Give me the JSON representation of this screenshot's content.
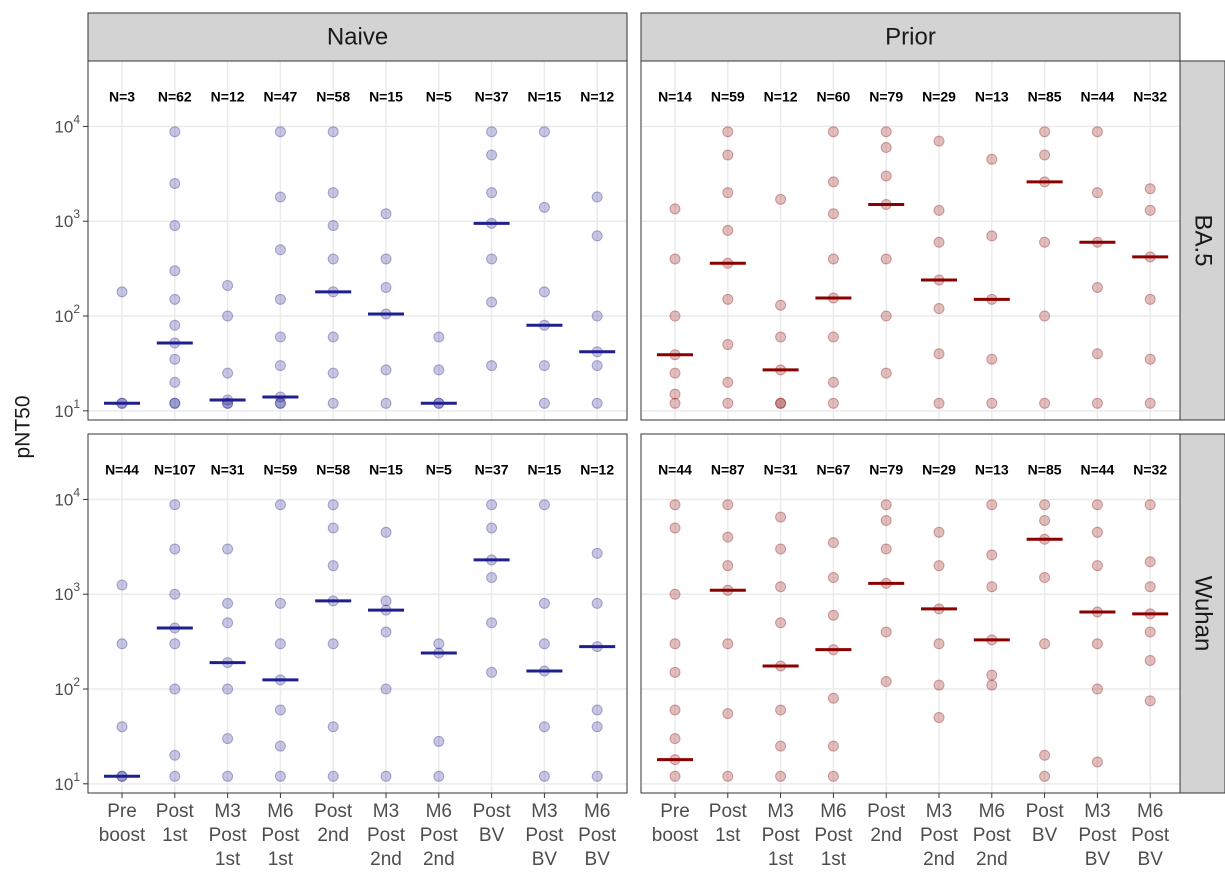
{
  "chart_data": {
    "type": "dot",
    "y_label": "pNT50",
    "log_y": true,
    "grid": true,
    "ylim": [
      8,
      49000
    ],
    "yticks": [
      {
        "value": 10,
        "label": "10",
        "exponent": "1"
      },
      {
        "value": 100,
        "label": "10",
        "exponent": "2"
      },
      {
        "value": 1000,
        "label": "10",
        "exponent": "3"
      },
      {
        "value": 10000,
        "label": "10",
        "exponent": "4"
      }
    ],
    "columns": [
      "Naive",
      "Prior"
    ],
    "rows": [
      "BA.5",
      "Wuhan"
    ],
    "categories": [
      [
        "Pre",
        "boost"
      ],
      [
        "Post",
        "1st"
      ],
      [
        "M3",
        "Post",
        "1st"
      ],
      [
        "M6",
        "Post",
        "1st"
      ],
      [
        "Post",
        "2nd"
      ],
      [
        "M3",
        "Post",
        "2nd"
      ],
      [
        "M6",
        "Post",
        "2nd"
      ],
      [
        "Post",
        "BV"
      ],
      [
        "M3",
        "Post",
        "BV"
      ],
      [
        "M6",
        "Post",
        "BV"
      ]
    ],
    "panels": [
      {
        "col": 0,
        "row": 0,
        "color": "#1f1f8f",
        "n_labels": [
          "N=3",
          "N=62",
          "N=12",
          "N=47",
          "N=58",
          "N=15",
          "N=5",
          "N=37",
          "N=15",
          "N=12"
        ],
        "medians": [
          12,
          52,
          13,
          14,
          180,
          105,
          12,
          950,
          80,
          42
        ],
        "points": [
          [
            12,
            12,
            180
          ],
          [
            12,
            12,
            20,
            35,
            52,
            80,
            150,
            300,
            900,
            2500,
            8800
          ],
          [
            12,
            12,
            13,
            25,
            100,
            210
          ],
          [
            12,
            12,
            14,
            30,
            60,
            150,
            500,
            1800,
            8800
          ],
          [
            12,
            25,
            60,
            180,
            400,
            900,
            2000,
            8800
          ],
          [
            12,
            27,
            105,
            200,
            400,
            1200
          ],
          [
            12,
            12,
            27,
            60
          ],
          [
            30,
            140,
            400,
            950,
            2000,
            5000,
            8800
          ],
          [
            12,
            30,
            80,
            180,
            1400,
            8800
          ],
          [
            12,
            30,
            42,
            100,
            700,
            1800
          ]
        ]
      },
      {
        "col": 1,
        "row": 0,
        "color": "#8b0000",
        "n_labels": [
          "N=14",
          "N=59",
          "N=12",
          "N=60",
          "N=79",
          "N=29",
          "N=13",
          "N=85",
          "N=44",
          "N=32"
        ],
        "medians": [
          39,
          360,
          27,
          155,
          1500,
          240,
          150,
          2600,
          600,
          420
        ],
        "points": [
          [
            12,
            15,
            25,
            39,
            100,
            400,
            1350
          ],
          [
            12,
            20,
            50,
            150,
            360,
            800,
            2000,
            5000,
            8800
          ],
          [
            12,
            12,
            27,
            60,
            130,
            1700
          ],
          [
            12,
            20,
            60,
            155,
            400,
            1200,
            2600,
            8800
          ],
          [
            25,
            100,
            400,
            1500,
            3000,
            6000,
            8800
          ],
          [
            12,
            40,
            120,
            240,
            600,
            1300,
            7000
          ],
          [
            12,
            35,
            150,
            700,
            4500
          ],
          [
            12,
            100,
            600,
            2600,
            5000,
            8800
          ],
          [
            12,
            40,
            200,
            600,
            2000,
            8800
          ],
          [
            12,
            35,
            150,
            420,
            1300,
            2200
          ]
        ]
      },
      {
        "col": 0,
        "row": 1,
        "color": "#1f1f8f",
        "n_labels": [
          "N=44",
          "N=107",
          "N=31",
          "N=59",
          "N=58",
          "N=15",
          "N=5",
          "N=37",
          "N=15",
          "N=12"
        ],
        "medians": [
          12,
          440,
          190,
          125,
          850,
          680,
          240,
          2300,
          155,
          280
        ],
        "points": [
          [
            12,
            12,
            40,
            300,
            1250
          ],
          [
            12,
            20,
            100,
            300,
            440,
            1000,
            3000,
            8800
          ],
          [
            12,
            30,
            100,
            190,
            500,
            800,
            3000
          ],
          [
            12,
            25,
            60,
            125,
            300,
            800,
            8800
          ],
          [
            12,
            40,
            300,
            850,
            2000,
            5000,
            8800
          ],
          [
            12,
            100,
            400,
            680,
            850,
            4500
          ],
          [
            12,
            28,
            240,
            300
          ],
          [
            150,
            500,
            1500,
            2300,
            5000,
            8800
          ],
          [
            12,
            40,
            155,
            300,
            800,
            8800
          ],
          [
            12,
            40,
            60,
            280,
            800,
            2700
          ]
        ]
      },
      {
        "col": 1,
        "row": 1,
        "color": "#8b0000",
        "n_labels": [
          "N=44",
          "N=87",
          "N=31",
          "N=67",
          "N=79",
          "N=29",
          "N=13",
          "N=85",
          "N=44",
          "N=32"
        ],
        "medians": [
          18,
          1100,
          175,
          260,
          1300,
          700,
          330,
          3800,
          650,
          620
        ],
        "points": [
          [
            12,
            18,
            30,
            60,
            150,
            300,
            1000,
            5000,
            8800
          ],
          [
            12,
            55,
            300,
            1100,
            2000,
            4000,
            8800
          ],
          [
            12,
            25,
            60,
            175,
            500,
            1200,
            3000,
            6500
          ],
          [
            12,
            25,
            80,
            260,
            600,
            1500,
            3500
          ],
          [
            120,
            400,
            1300,
            3000,
            6000,
            8800
          ],
          [
            50,
            110,
            300,
            700,
            2000,
            4500
          ],
          [
            110,
            140,
            330,
            1200,
            2600,
            8800
          ],
          [
            12,
            20,
            300,
            1500,
            3800,
            6000,
            8800
          ],
          [
            17,
            100,
            300,
            650,
            2000,
            4500,
            8800
          ],
          [
            75,
            200,
            400,
            620,
            1200,
            2200,
            8800
          ]
        ]
      }
    ]
  }
}
